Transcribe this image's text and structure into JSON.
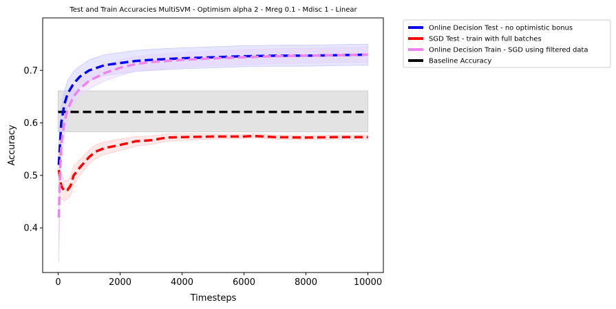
{
  "chart_data": {
    "type": "line",
    "title": "Test and Train Accuracies MultiSVM - Optimism alpha 2 - Mreg 0.1 - Mdisc 1 - Linear",
    "xlabel": "Timesteps",
    "ylabel": "Accuracy",
    "xlim": [
      -500,
      10500
    ],
    "ylim": [
      0.315,
      0.8
    ],
    "xticks": [
      0,
      2000,
      4000,
      6000,
      8000,
      10000
    ],
    "xtick_labels": [
      "0",
      "2000",
      "4000",
      "6000",
      "8000",
      "10000"
    ],
    "yticks": [
      0.4,
      0.5,
      0.6,
      0.7
    ],
    "ytick_labels": [
      "0.4",
      "0.5",
      "0.6",
      "0.7"
    ],
    "grid": false,
    "legend_placement": "outside-upper-right",
    "series": [
      {
        "name": "Online Decision Test - no optimistic bonus",
        "color": "#0000ff",
        "band_color": "#c8c8ff",
        "x": [
          20,
          100,
          200,
          300,
          500,
          700,
          1000,
          1500,
          2000,
          2500,
          3000,
          4000,
          5000,
          6000,
          7000,
          8000,
          9000,
          10000
        ],
        "y": [
          0.52,
          0.6,
          0.635,
          0.655,
          0.675,
          0.688,
          0.7,
          0.71,
          0.714,
          0.718,
          0.72,
          0.723,
          0.725,
          0.727,
          0.728,
          0.728,
          0.729,
          0.73
        ],
        "y_lower": [
          0.48,
          0.57,
          0.61,
          0.63,
          0.655,
          0.668,
          0.68,
          0.69,
          0.694,
          0.698,
          0.7,
          0.703,
          0.705,
          0.707,
          0.708,
          0.708,
          0.709,
          0.71
        ],
        "y_upper": [
          0.56,
          0.63,
          0.66,
          0.68,
          0.698,
          0.708,
          0.72,
          0.73,
          0.734,
          0.738,
          0.74,
          0.743,
          0.745,
          0.747,
          0.748,
          0.748,
          0.749,
          0.75
        ]
      },
      {
        "name": "SGD Test - train with full batches",
        "color": "#ff0000",
        "band_color": "#ffcccc",
        "x": [
          20,
          100,
          200,
          300,
          400,
          500,
          700,
          1000,
          1200,
          1500,
          2000,
          2300,
          2500,
          3000,
          3500,
          4000,
          5000,
          6000,
          6300,
          7000,
          8000,
          9000,
          10000
        ],
        "y": [
          0.51,
          0.48,
          0.47,
          0.472,
          0.48,
          0.5,
          0.515,
          0.535,
          0.545,
          0.552,
          0.558,
          0.562,
          0.565,
          0.567,
          0.572,
          0.573,
          0.574,
          0.574,
          0.575,
          0.573,
          0.572,
          0.573,
          0.573
        ],
        "y_lower": [
          0.47,
          0.455,
          0.452,
          0.455,
          0.462,
          0.482,
          0.5,
          0.522,
          0.532,
          0.54,
          0.547,
          0.552,
          0.556,
          0.559,
          0.565,
          0.567,
          0.569,
          0.57,
          0.571,
          0.569,
          0.568,
          0.569,
          0.569
        ],
        "y_upper": [
          0.55,
          0.505,
          0.49,
          0.49,
          0.498,
          0.518,
          0.53,
          0.548,
          0.558,
          0.564,
          0.569,
          0.572,
          0.574,
          0.575,
          0.579,
          0.579,
          0.579,
          0.578,
          0.579,
          0.577,
          0.576,
          0.577,
          0.577
        ]
      },
      {
        "name": "Online Decision Train - SGD using filtered data",
        "color": "#ee82ee",
        "band_color": "#e6d2fa",
        "x": [
          20,
          60,
          100,
          200,
          300,
          500,
          700,
          1000,
          1500,
          2000,
          2500,
          3000,
          4000,
          5000,
          6000,
          7000,
          8000,
          9000,
          10000
        ],
        "y": [
          0.42,
          0.5,
          0.56,
          0.6,
          0.625,
          0.65,
          0.665,
          0.68,
          0.695,
          0.705,
          0.712,
          0.716,
          0.72,
          0.723,
          0.725,
          0.727,
          0.728,
          0.729,
          0.73
        ],
        "y_lower": [
          0.335,
          0.45,
          0.52,
          0.575,
          0.605,
          0.635,
          0.65,
          0.665,
          0.68,
          0.69,
          0.698,
          0.702,
          0.706,
          0.709,
          0.711,
          0.713,
          0.714,
          0.715,
          0.716
        ],
        "y_upper": [
          0.5,
          0.55,
          0.6,
          0.625,
          0.645,
          0.665,
          0.68,
          0.695,
          0.71,
          0.72,
          0.726,
          0.73,
          0.734,
          0.737,
          0.739,
          0.741,
          0.742,
          0.743,
          0.744
        ]
      },
      {
        "name": "Baseline Accuracy",
        "color": "#000000",
        "band_color": "#c8c8c8",
        "x": [
          0,
          10000
        ],
        "y": [
          0.621,
          0.621
        ],
        "y_lower": [
          0.583,
          0.583
        ],
        "y_upper": [
          0.661,
          0.661
        ]
      }
    ]
  }
}
